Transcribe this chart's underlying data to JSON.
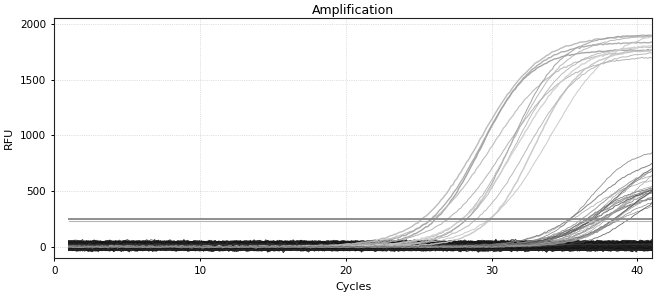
{
  "title": "Amplification",
  "xlabel": "Cycles",
  "ylabel": "RFU",
  "xlim": [
    1,
    41
  ],
  "ylim": [
    -100,
    2050
  ],
  "xticks": [
    0,
    10,
    20,
    30,
    40
  ],
  "yticks": [
    0,
    500,
    1000,
    1500,
    2000
  ],
  "bg_color": "#ffffff",
  "grid_color": "#aaaaaa",
  "sigmoid_params": {
    "L_min": 1700,
    "L_max": 2000,
    "k_min": 0.45,
    "k_max": 0.65,
    "x0_min": 29,
    "x0_max": 35,
    "n_main": 12
  },
  "sigmoid_late": {
    "L_min": 400,
    "L_max": 900,
    "k_min": 0.5,
    "k_max": 0.8,
    "x0_min": 36,
    "x0_max": 40,
    "n": 25
  },
  "flat_level": 250,
  "neg_band_n": 80,
  "neg_band_base": 20,
  "neg_band_spread": 30,
  "title_fontsize": 9,
  "label_fontsize": 8,
  "tick_fontsize": 7.5
}
